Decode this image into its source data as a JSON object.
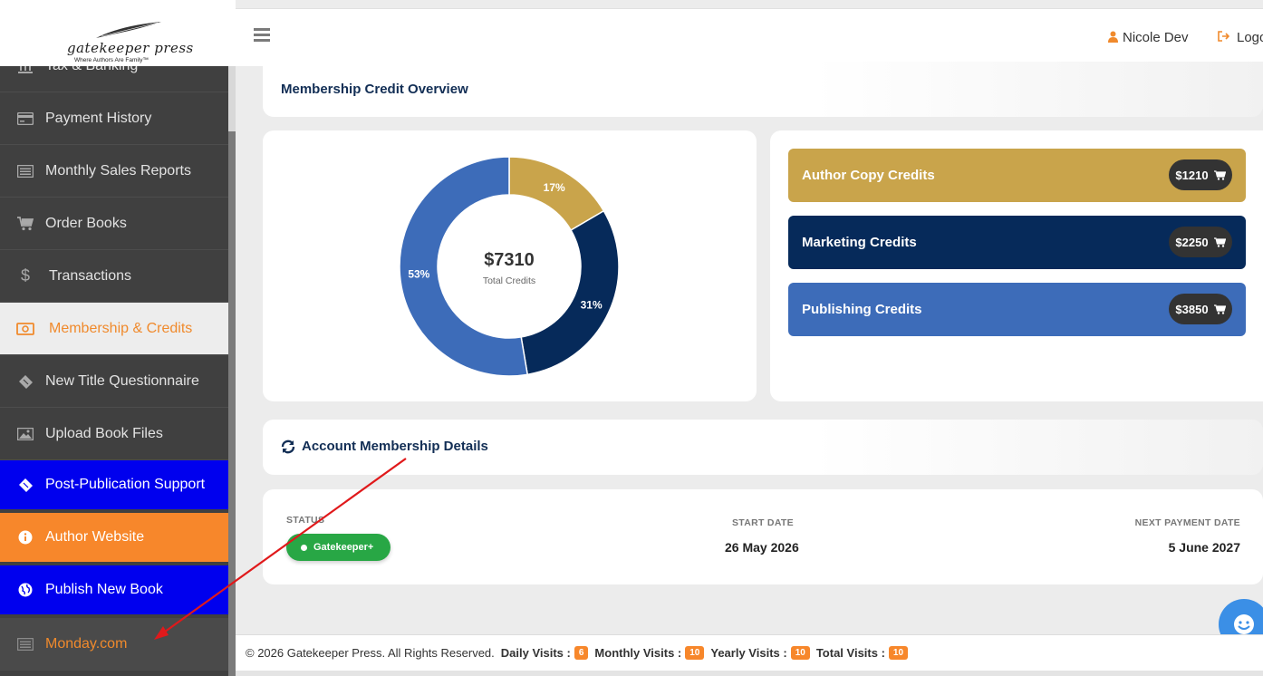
{
  "brand": {
    "logo_title": "gatekeeper press",
    "logo_tagline": "Where Authors Are Family™"
  },
  "header": {
    "user_name": "Nicole Dev",
    "logout_label": "Logout"
  },
  "sidebar": {
    "items": [
      {
        "label": "Tax & Banking",
        "icon": "bank-icon"
      },
      {
        "label": "Payment History",
        "icon": "credit-card-icon"
      },
      {
        "label": "Monthly Sales Reports",
        "icon": "list-icon"
      },
      {
        "label": "Order Books",
        "icon": "cart-icon"
      },
      {
        "label": "Transactions",
        "icon": "dollar-icon"
      },
      {
        "label": "Membership & Credits",
        "icon": "money-icon",
        "active": true
      },
      {
        "label": "New Title Questionnaire",
        "icon": "ticket-icon"
      },
      {
        "label": "Upload Book Files",
        "icon": "image-icon"
      },
      {
        "label": "Post-Publication Support",
        "icon": "ticket-icon"
      },
      {
        "label": "Author Website",
        "icon": "info-icon"
      },
      {
        "label": "Publish New Book",
        "icon": "globe-icon"
      },
      {
        "label": "Monday.com",
        "icon": "list-icon"
      }
    ]
  },
  "overview": {
    "title": "Membership Credit Overview",
    "total_amount": "$7310",
    "total_label": "Total Credits",
    "colors": {
      "author": "#c9a44b",
      "marketing": "#062a5a",
      "publishing": "#3d6cb9"
    }
  },
  "chart_data": {
    "type": "pie",
    "categories": [
      "Author Copy Credits",
      "Marketing Credits",
      "Publishing Credits"
    ],
    "values": [
      1210,
      2250,
      3850
    ],
    "labels": [
      "17%",
      "31%",
      "53%"
    ],
    "center_text": "$7310",
    "center_subtext": "Total Credits"
  },
  "credits": [
    {
      "label": "Author Copy Credits",
      "amount": "$1210",
      "color": "#c9a44b"
    },
    {
      "label": "Marketing Credits",
      "amount": "$2250",
      "color": "#062a5a"
    },
    {
      "label": "Publishing Credits",
      "amount": "$3850",
      "color": "#3d6cb9"
    }
  ],
  "details": {
    "title": "Account Membership Details",
    "status_label": "STATUS",
    "status_value": "Gatekeeper+",
    "start_label": "START DATE",
    "start_value": "26 May 2026",
    "next_label": "NEXT PAYMENT DATE",
    "next_value": "5 June 2027"
  },
  "footer": {
    "copyright": "© 2026 Gatekeeper Press. All Rights Reserved.",
    "daily_label": "Daily Visits :",
    "daily_value": "6",
    "monthly_label": "Monthly Visits :",
    "monthly_value": "10",
    "yearly_label": "Yearly Visits :",
    "yearly_value": "10",
    "total_label": "Total Visits :",
    "total_value": "10"
  }
}
